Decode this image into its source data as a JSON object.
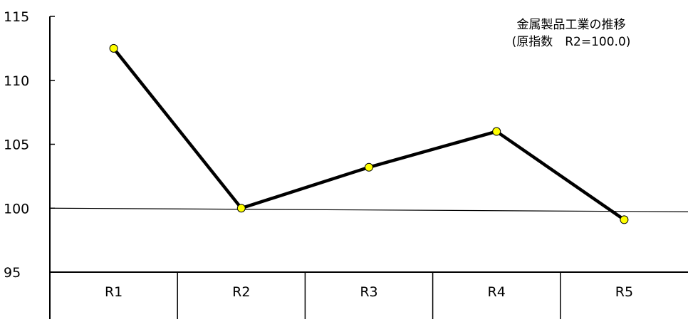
{
  "chart_data": {
    "type": "line",
    "title": "金属製品工業の推移",
    "subtitle": "(原指数　R2=100.0)",
    "categories": [
      "R1",
      "R2",
      "R3",
      "R4",
      "R5"
    ],
    "series": [
      {
        "values": [
          112.5,
          100.0,
          103.2,
          106.0,
          99.1
        ]
      }
    ],
    "ylim": [
      95,
      115
    ],
    "yticks": [
      "95",
      "100",
      "105",
      "110",
      "115"
    ],
    "reference_line": 100,
    "xlabel": "",
    "ylabel": "",
    "grid": false,
    "marker_color": "#ffff00",
    "line_color": "#000000"
  }
}
